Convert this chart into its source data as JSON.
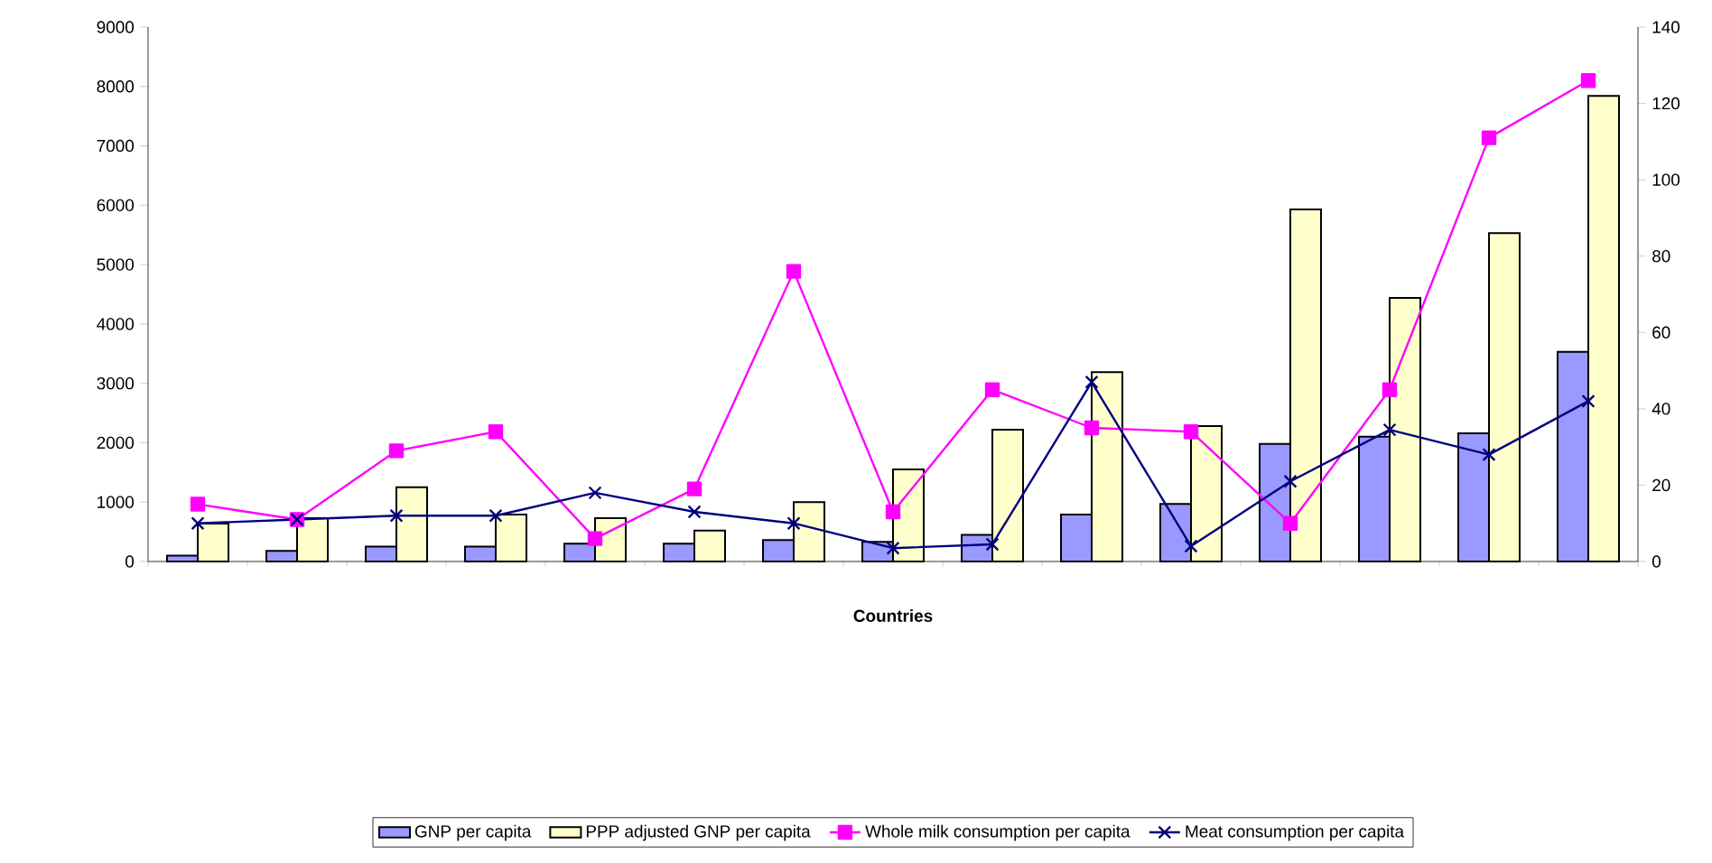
{
  "chart_data": {
    "type": "bar",
    "xlabel": "Countries",
    "categories": [
      null,
      null,
      null,
      null,
      null,
      null,
      null,
      null,
      null,
      null,
      null,
      null,
      null,
      null,
      null
    ],
    "series": [
      {
        "name": "GNP per capita",
        "color": "#9999ff",
        "values": [
          100,
          180,
          250,
          250,
          300,
          300,
          360,
          330,
          450,
          790,
          970,
          1980,
          2100,
          2160,
          3530
        ]
      },
      {
        "name": "PPP adjusted GNP per capita",
        "color": "#ffffcc",
        "values": [
          640,
          730,
          1250,
          790,
          730,
          520,
          1000,
          1550,
          2220,
          3190,
          2280,
          5930,
          4440,
          5530,
          7840
        ]
      },
      {
        "name": "Whole milk consumption per capita",
        "type": "line",
        "axis": "y2",
        "marker": "square",
        "color": "#ff00ff",
        "values": [
          15,
          11,
          29,
          34,
          6,
          19,
          76,
          13,
          45,
          35,
          34,
          10,
          45,
          111,
          126
        ]
      },
      {
        "name": "Meat consumption per capita",
        "type": "line",
        "axis": "y2",
        "marker": "cross",
        "color": "#000080",
        "values": [
          10,
          11,
          12,
          12,
          18,
          13,
          10,
          3.5,
          4.5,
          47,
          4,
          21,
          34.5,
          28,
          42
        ]
      }
    ],
    "ylim": [
      0,
      9000
    ],
    "yticks": [
      0,
      1000,
      2000,
      3000,
      4000,
      5000,
      6000,
      7000,
      8000,
      9000
    ],
    "y2lim": [
      0,
      140
    ],
    "y2ticks": [
      0,
      20,
      40,
      60,
      80,
      100,
      120,
      140
    ],
    "legend": "bottom"
  }
}
